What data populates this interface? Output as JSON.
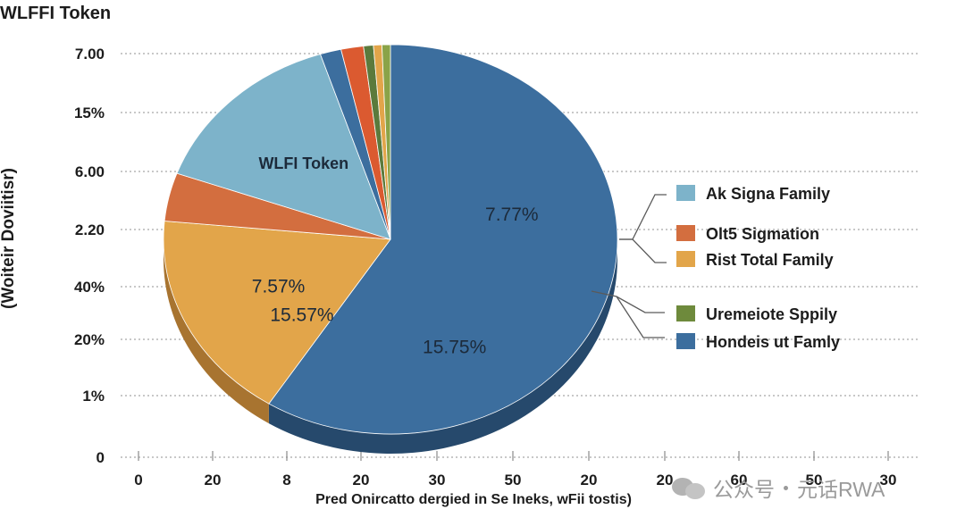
{
  "chart_data": {
    "type": "pie",
    "title": "WLFFI Token",
    "ylabel": "(Woiteir Doviitisr)",
    "xlabel": "Pred Onircatto dergied in Se Ineks, wFii tostis)",
    "y_ticks": [
      "7.00",
      "15%",
      "6.00",
      "2.20",
      "40%",
      "20%",
      "1%",
      "0"
    ],
    "x_ticks": [
      "0",
      "20",
      "8",
      "20",
      "30",
      "50",
      "20",
      "20",
      "60",
      "50",
      "30"
    ],
    "grid": true,
    "legend_position": "right",
    "slices": [
      {
        "label": "Hondeis ut Family",
        "percent": 59.0,
        "color": "#3c6e9e",
        "side": "#26496c",
        "text": [
          "7.77%",
          "15.75%",
          "15.57%"
        ]
      },
      {
        "label": "Rist Total Family",
        "percent": 17.5,
        "color": "#e2a54a",
        "side": "#a87430",
        "text": [
          "7.57%"
        ]
      },
      {
        "label": "Olt5 Sigmation",
        "percent": 4.0,
        "color": "#d36e3f",
        "side": "#9a4c28",
        "text": []
      },
      {
        "label": "Ak Signa Family",
        "percent": 14.5,
        "color": "#7db3ca",
        "side": "#56879c",
        "text": [
          "WLFI Token"
        ]
      },
      {
        "label": "",
        "percent": 1.5,
        "color": "#3c6e9e",
        "side": "#26496c",
        "text": []
      },
      {
        "label": "",
        "percent": 1.6,
        "color": "#db5a30",
        "side": "#9a3f22",
        "text": []
      },
      {
        "label": "",
        "percent": 0.7,
        "color": "#5b7a3c",
        "side": "#3e5428",
        "text": []
      },
      {
        "label": "",
        "percent": 0.6,
        "color": "#e2a54a",
        "side": "#a87430",
        "text": []
      },
      {
        "label": "",
        "percent": 0.6,
        "color": "#8aa348",
        "side": "#5f7230",
        "text": []
      }
    ],
    "legend": [
      {
        "label": "Ak Signa Family",
        "color": "#7db3ca"
      },
      {
        "label": "Olt5 Sigmation",
        "color": "#d36e3f"
      },
      {
        "label": "Rist Total Family",
        "color": "#e2a54a"
      },
      {
        "label": "Uremeiote Sppily",
        "color": "#6e8a3c"
      },
      {
        "label": "Hondeis ut Famly",
        "color": "#3c6e9e"
      }
    ]
  },
  "watermark": {
    "brand": "公众号",
    "name": "元话RWA"
  }
}
